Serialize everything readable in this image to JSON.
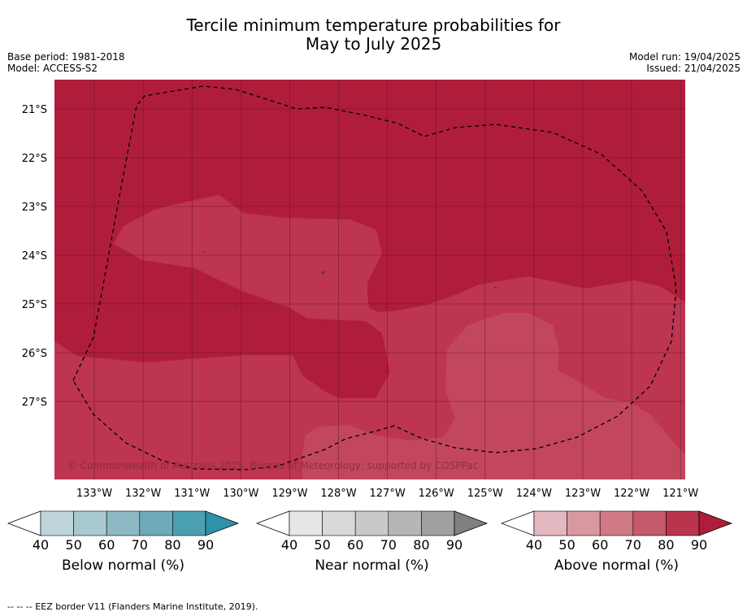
{
  "title_line1": "Tercile minimum temperature probabilities for",
  "title_line2": "May to July 2025",
  "meta_left": {
    "base_period": "Base period: 1981-2018",
    "model": "Model: ACCESS-S2"
  },
  "meta_right": {
    "model_run": "Model run: 19/04/2025",
    "issued": "Issued: 21/04/2025"
  },
  "map": {
    "lat_labels": [
      "21°S",
      "22°S",
      "23°S",
      "24°S",
      "25°S",
      "26°S",
      "27°S"
    ],
    "lon_labels": [
      "133°W",
      "132°W",
      "131°W",
      "130°W",
      "129°W",
      "128°W",
      "127°W",
      "126°W",
      "125°W",
      "124°W",
      "123°W",
      "122°W",
      "121°W"
    ],
    "copyright": "© Commonwealth of Australia 2025, Bureau of Meteorology, supported by COSPPac",
    "colors": {
      "prob_80_90": "#b01d3a",
      "prob_70_80": "#bd3550",
      "prob_60_70": "#c2475e"
    }
  },
  "colorbars": [
    {
      "name": "below",
      "label": "Below normal (%)",
      "ticks": [
        "40",
        "50",
        "60",
        "70",
        "80",
        "90"
      ],
      "colors": [
        "#ffffff",
        "#bed5db",
        "#a8c9d0",
        "#8db9c4",
        "#6eaab8",
        "#4aa0b0",
        "#2d93a8"
      ]
    },
    {
      "name": "near",
      "label": "Near normal (%)",
      "ticks": [
        "40",
        "50",
        "60",
        "70",
        "80",
        "90"
      ],
      "colors": [
        "#ffffff",
        "#e6e6e6",
        "#d9d9d9",
        "#c9c9c9",
        "#b6b6b6",
        "#a0a0a0",
        "#808080"
      ]
    },
    {
      "name": "above",
      "label": "Above normal (%)",
      "ticks": [
        "40",
        "50",
        "60",
        "70",
        "80",
        "90"
      ],
      "colors": [
        "#ffffff",
        "#e3b8c0",
        "#d9979f",
        "#cf7a84",
        "#c45a6a",
        "#b9344c",
        "#b01d3a"
      ]
    }
  ],
  "footer": "--  --  -- EEZ border V11 (Flanders Marine Institute, 2019)."
}
